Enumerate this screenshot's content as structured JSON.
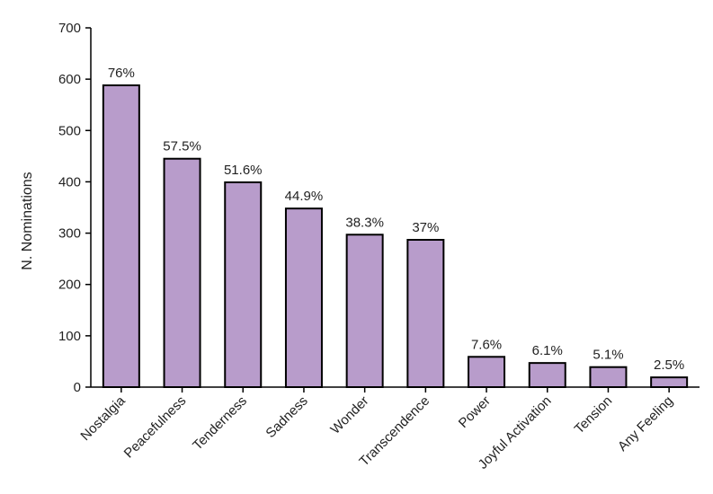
{
  "chart_data": {
    "type": "bar",
    "title": "",
    "xlabel": "",
    "ylabel": "N. Nominations",
    "ylim": [
      0,
      700
    ],
    "yticks": [
      0,
      100,
      200,
      300,
      400,
      500,
      600,
      700
    ],
    "grid": false,
    "legend": "none",
    "categories": [
      "Nostalgia",
      "Peacefulness",
      "Tenderness",
      "Sadness",
      "Wonder",
      "Transcendence",
      "Power",
      "Joyful Activation",
      "Tension",
      "Any Feeling"
    ],
    "values": [
      588,
      445,
      399,
      348,
      297,
      287,
      59,
      47,
      39,
      19
    ],
    "data_labels": [
      "76%",
      "57.5%",
      "51.6%",
      "44.9%",
      "38.3%",
      "37%",
      "7.6%",
      "6.1%",
      "5.1%",
      "2.5%"
    ],
    "bar_color": "#b89ccb",
    "bar_edge_color": "#000000"
  }
}
